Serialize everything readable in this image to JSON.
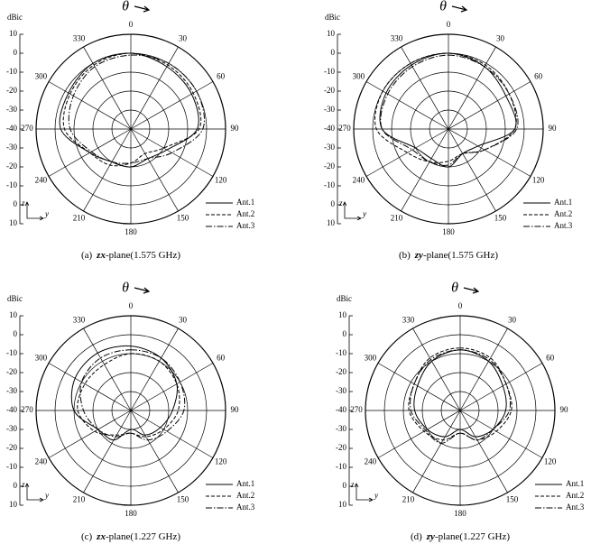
{
  "chart_data": [
    {
      "type": "polar",
      "theta_symbol": "θ",
      "unit_label": "dBic",
      "axis_z": "z",
      "axis_y": "y",
      "caption_label": "(a)",
      "caption_plane": "zx",
      "caption_rest": "-plane(1.575  GHz)",
      "angles": [
        0,
        30,
        60,
        90,
        120,
        150,
        180,
        210,
        240,
        270,
        300,
        330
      ],
      "rlim": [
        -40,
        10
      ],
      "rticks": [
        -40,
        -30,
        -20,
        -10,
        0,
        10
      ],
      "grid": true,
      "series": [
        {
          "name": "Ant.1",
          "color": "#000000",
          "dash": "solid",
          "values": [
            0,
            -2,
            -3,
            -5,
            -18,
            -22,
            -20,
            -20,
            -15,
            -3,
            -2,
            0
          ]
        },
        {
          "name": "Ant.2",
          "color": "#000000",
          "dash": "dashed",
          "values": [
            0,
            -1,
            -2,
            -4,
            -20,
            -25,
            -22,
            -18,
            -15,
            -5,
            -3,
            -1
          ]
        },
        {
          "name": "Ant.3",
          "color": "#000000",
          "dash": "dashdot",
          "values": [
            -1,
            0,
            0,
            -2,
            -15,
            -22,
            -22,
            -20,
            -16,
            -8,
            -5,
            -2
          ]
        }
      ]
    },
    {
      "type": "polar",
      "theta_symbol": "θ",
      "unit_label": "dBic",
      "axis_z": "z",
      "axis_y": "y",
      "caption_label": "(b)",
      "caption_plane": "zy",
      "caption_rest": "-plane(1.575  GHz)",
      "angles": [
        0,
        30,
        60,
        90,
        120,
        150,
        180,
        210,
        240,
        270,
        300,
        330
      ],
      "rlim": [
        -40,
        10
      ],
      "rticks": [
        -40,
        -30,
        -20,
        -10,
        0,
        10
      ],
      "grid": true,
      "series": [
        {
          "name": "Ant.1",
          "color": "#000000",
          "dash": "solid",
          "values": [
            0,
            -2,
            -5,
            -5,
            -22,
            -25,
            -20,
            -22,
            -20,
            -5,
            -2,
            -1
          ]
        },
        {
          "name": "Ant.2",
          "color": "#000000",
          "dash": "dashed",
          "values": [
            0,
            -1,
            -3,
            -5,
            -18,
            -25,
            -23,
            -20,
            -15,
            -2,
            0,
            0
          ]
        },
        {
          "name": "Ant.3",
          "color": "#000000",
          "dash": "dashdot",
          "values": [
            -1,
            -2,
            -3,
            -4,
            -18,
            -25,
            -21,
            -20,
            -18,
            -5,
            -3,
            -2
          ]
        }
      ]
    },
    {
      "type": "polar",
      "theta_symbol": "θ",
      "unit_label": "dBic",
      "axis_z": "z",
      "axis_y": "y",
      "caption_label": "(c)",
      "caption_plane": "zx",
      "caption_rest": "-plane(1.227  GHz)",
      "angles": [
        0,
        30,
        60,
        90,
        120,
        150,
        180,
        210,
        240,
        270,
        300,
        330
      ],
      "rlim": [
        -40,
        10
      ],
      "rticks": [
        -40,
        -30,
        -20,
        -10,
        0,
        10
      ],
      "grid": true,
      "series": [
        {
          "name": "Ant.1",
          "color": "#000000",
          "dash": "solid",
          "values": [
            -6,
            -8,
            -12,
            -18,
            -22,
            -25,
            -30,
            -22,
            -20,
            -10,
            -6,
            -5
          ]
        },
        {
          "name": "Ant.2",
          "color": "#000000",
          "dash": "dashed",
          "values": [
            -10,
            -10,
            -12,
            -15,
            -20,
            -24,
            -28,
            -25,
            -18,
            -12,
            -12,
            -12
          ]
        },
        {
          "name": "Ant.3",
          "color": "#000000",
          "dash": "dashdot",
          "values": [
            -8,
            -8,
            -10,
            -12,
            -18,
            -22,
            -28,
            -24,
            -20,
            -15,
            -10,
            -8
          ]
        }
      ]
    },
    {
      "type": "polar",
      "theta_symbol": "θ",
      "unit_label": "dBic",
      "axis_z": "z",
      "axis_y": "y",
      "caption_label": "(d)",
      "caption_plane": "zy",
      "caption_rest": "-plane(1.227  GHz)",
      "angles": [
        0,
        30,
        60,
        90,
        120,
        150,
        180,
        210,
        240,
        270,
        300,
        330
      ],
      "rlim": [
        -40,
        10
      ],
      "rticks": [
        -40,
        -30,
        -20,
        -10,
        0,
        10
      ],
      "grid": true,
      "series": [
        {
          "name": "Ant.1",
          "color": "#000000",
          "dash": "solid",
          "values": [
            -8,
            -10,
            -14,
            -16,
            -20,
            -24,
            -30,
            -24,
            -20,
            -16,
            -14,
            -10
          ]
        },
        {
          "name": "Ant.2",
          "color": "#000000",
          "dash": "dashed",
          "values": [
            -7,
            -8,
            -12,
            -13,
            -18,
            -22,
            -28,
            -22,
            -18,
            -13,
            -12,
            -8
          ]
        },
        {
          "name": "Ant.3",
          "color": "#000000",
          "dash": "dashdot",
          "values": [
            -8,
            -9,
            -12,
            -14,
            -20,
            -22,
            -28,
            -20,
            -19,
            -14,
            -12,
            -9
          ]
        }
      ]
    }
  ]
}
